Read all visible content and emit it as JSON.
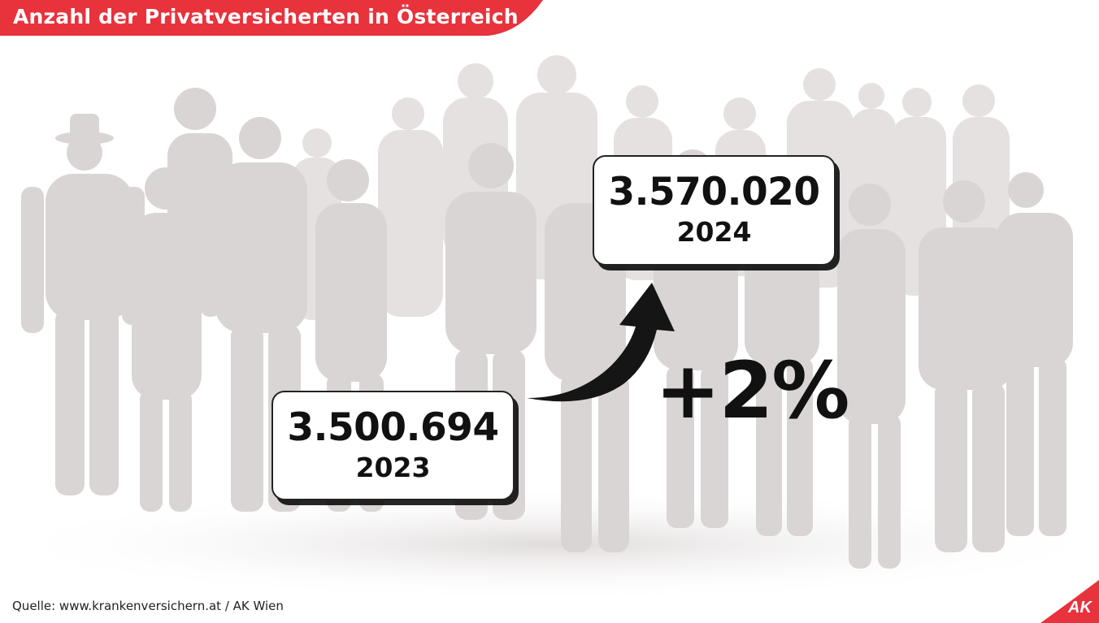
{
  "title": "Anzahl der Privatversicherten in Österreich",
  "stats": {
    "current": {
      "value": "3.570.020",
      "year": "2024"
    },
    "previous": {
      "value": "3.500.694",
      "year": "2023"
    },
    "change": "+2%"
  },
  "source": "Quelle: www.krankenversichern.at / AK Wien",
  "logo": {
    "text": "AK"
  },
  "colors": {
    "accent": "#e8323c",
    "silhouette": "#d9d5d4",
    "text": "#111111",
    "background": "#ffffff"
  },
  "icons": {
    "arrow": "curved-arrow-up-icon",
    "logo": "ak-logo"
  }
}
